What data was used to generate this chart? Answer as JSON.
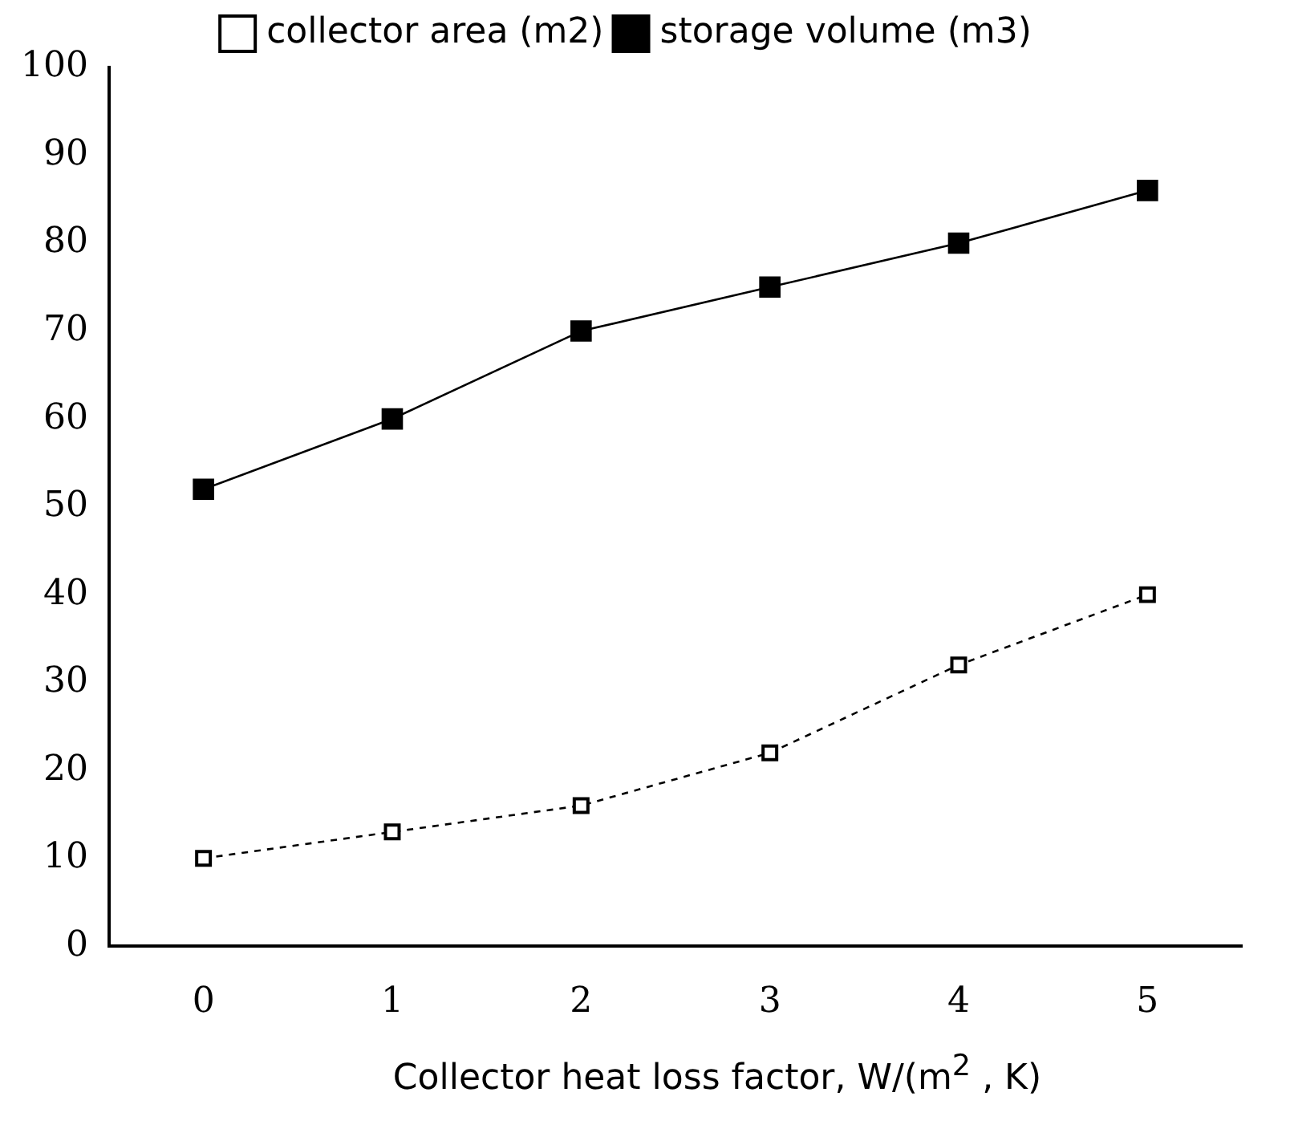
{
  "chart_data": {
    "type": "line",
    "xlabel": "Collector heat loss factor, W/(m$^{2}$ , K)",
    "categories": [
      "0",
      "1",
      "2",
      "3",
      "4",
      "5"
    ],
    "series": [
      {
        "name": "collector area (m2)",
        "color": "#000000",
        "line_style": "dashed",
        "values": [
          10,
          13,
          16,
          22,
          32,
          40
        ]
      },
      {
        "name": "storage volume (m3)",
        "color": "#000000",
        "line_style": "solid",
        "values": [
          52,
          60,
          70,
          75,
          80,
          86
        ]
      }
    ],
    "ylim": [
      0,
      100
    ],
    "yticks": [
      0,
      10,
      20,
      30,
      40,
      50,
      60,
      70,
      80,
      90,
      100
    ],
    "grid": false,
    "legend": "top",
    "marker": "square"
  }
}
